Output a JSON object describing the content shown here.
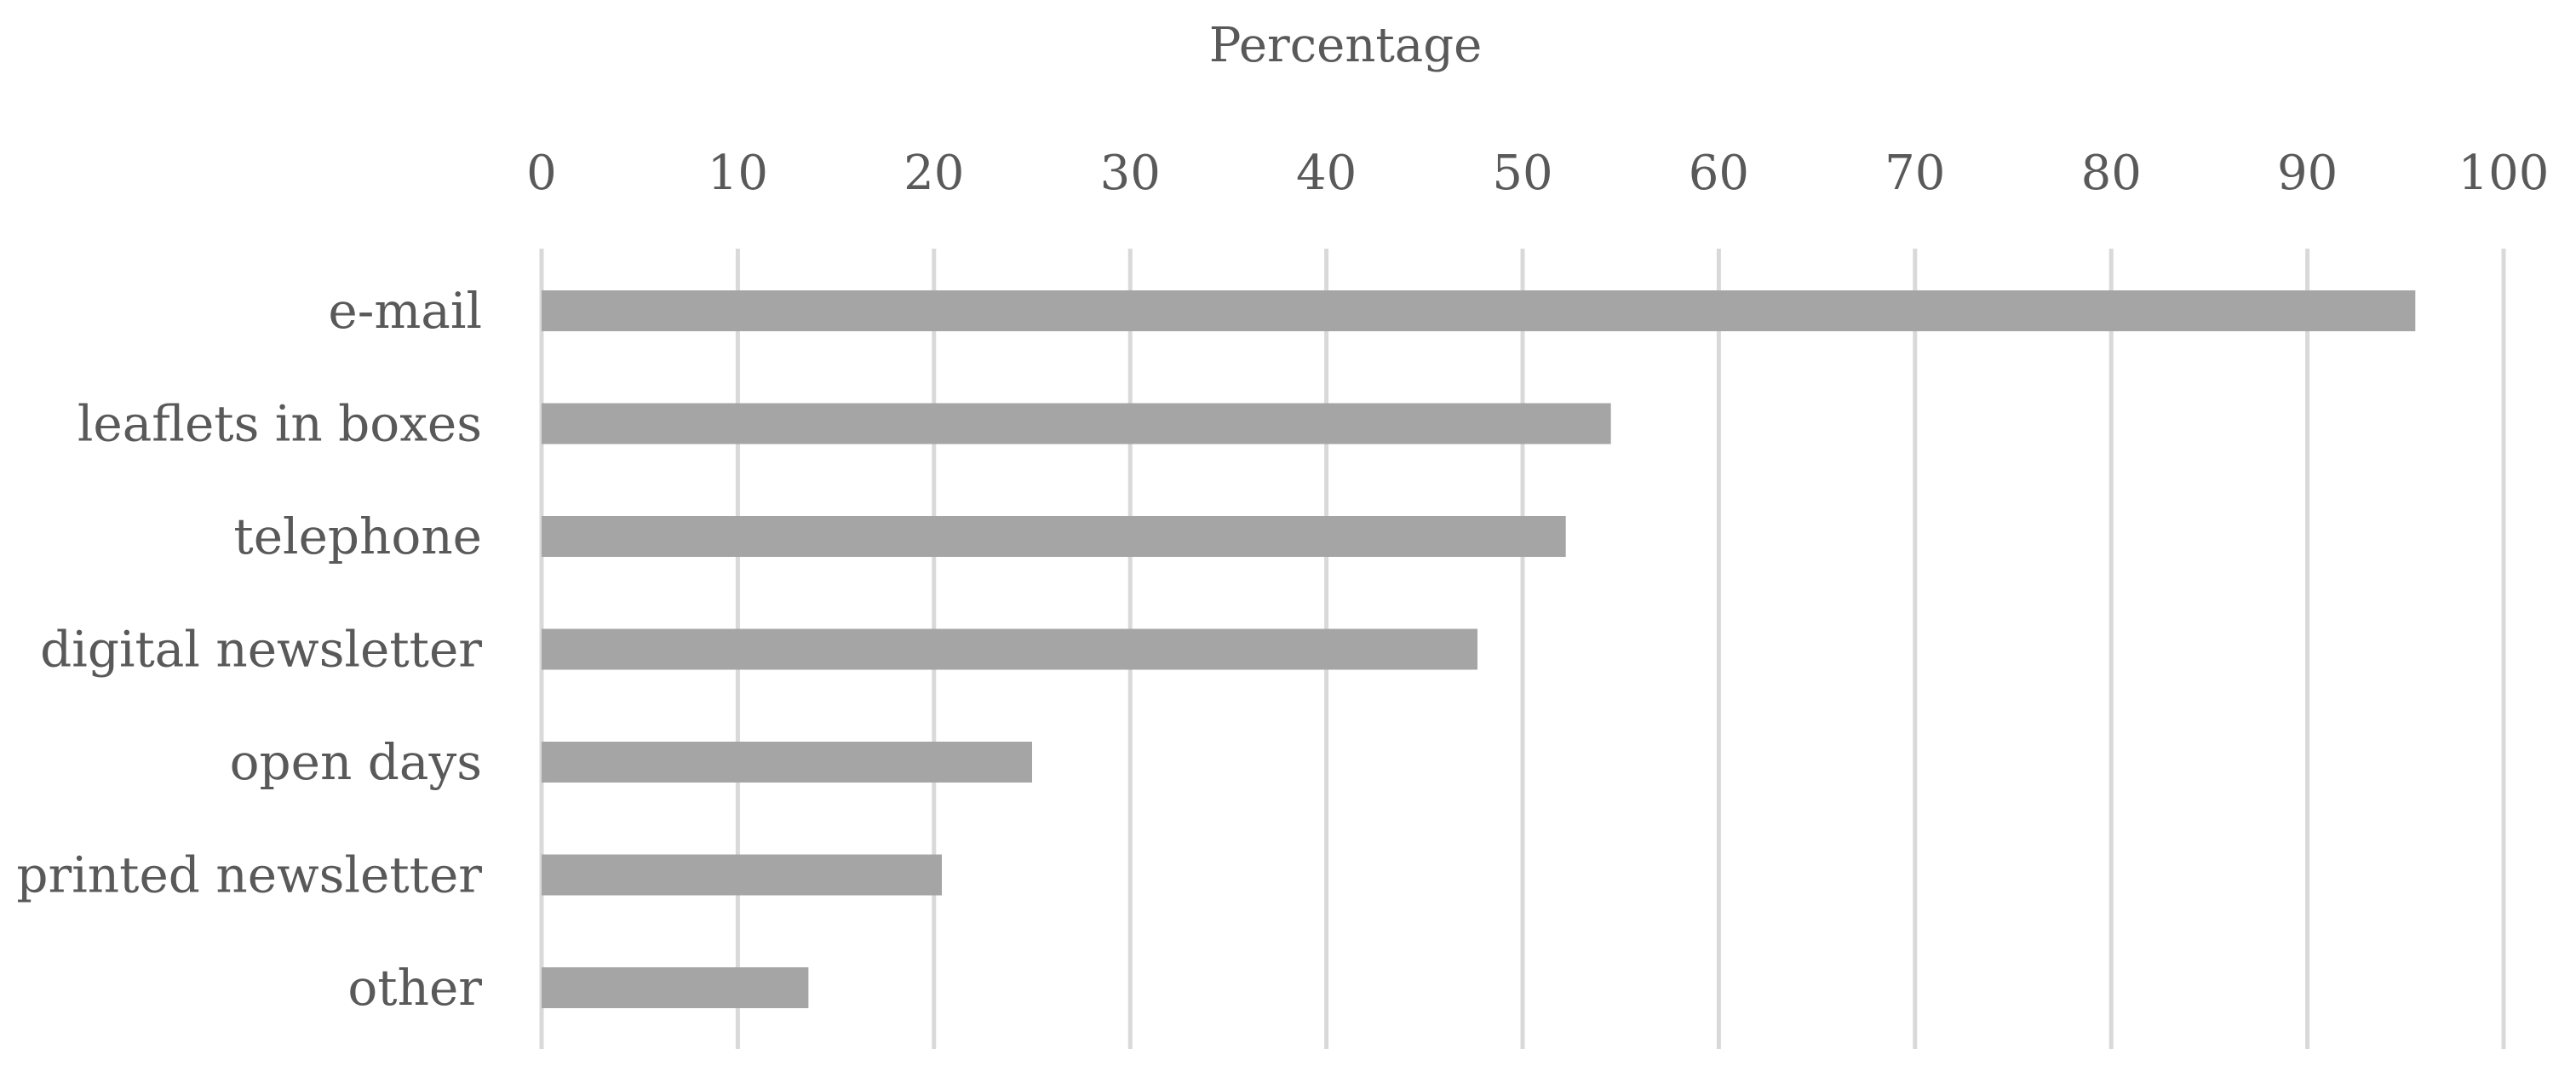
{
  "chart_data": {
    "type": "bar",
    "orientation": "horizontal",
    "title": "",
    "xlabel": "Percentage",
    "ylabel": "",
    "xlim": [
      0,
      100
    ],
    "x_ticks": [
      0,
      10,
      20,
      30,
      40,
      50,
      60,
      70,
      80,
      90,
      100
    ],
    "x_axis_position": "top",
    "grid": true,
    "legend": "none",
    "categories": [
      "e-mail",
      "leaflets in boxes",
      "telephone",
      "digital newsletter",
      "open days",
      "printed newsletter",
      "other"
    ],
    "values": [
      95.5,
      54.5,
      52.2,
      47.7,
      25,
      20.4,
      13.6
    ],
    "colors": {
      "bar": "#a5a5a5",
      "grid": "#d9d9d9",
      "text": "#595959"
    }
  }
}
